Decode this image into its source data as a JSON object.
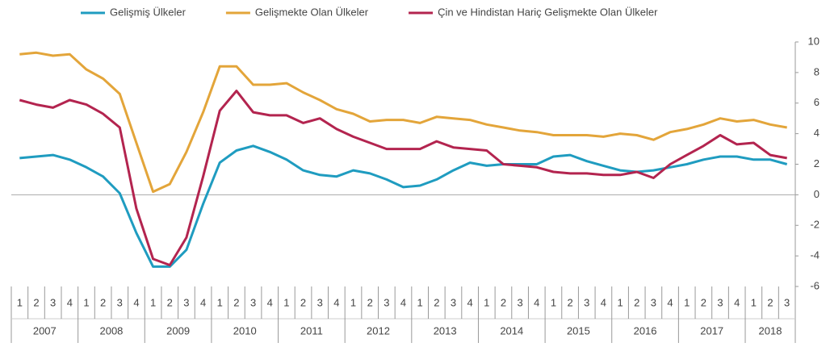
{
  "chart_data": {
    "type": "line",
    "categories": [
      "1",
      "2",
      "3",
      "4",
      "1",
      "2",
      "3",
      "4",
      "1",
      "2",
      "3",
      "4",
      "1",
      "2",
      "3",
      "4",
      "1",
      "2",
      "3",
      "4",
      "1",
      "2",
      "3",
      "4",
      "1",
      "2",
      "3",
      "4",
      "1",
      "2",
      "3",
      "4",
      "1",
      "2",
      "3",
      "4",
      "1",
      "2",
      "3",
      "4",
      "1",
      "2",
      "3",
      "4",
      "1",
      "2",
      "3"
    ],
    "years": [
      "2007",
      "2008",
      "2009",
      "2010",
      "2011",
      "2012",
      "2013",
      "2014",
      "2015",
      "2016",
      "2017",
      "2018"
    ],
    "series": [
      {
        "name": "Gelişmiş Ülkeler",
        "color": "#1f9cc0",
        "values": [
          2.4,
          2.5,
          2.6,
          2.3,
          1.8,
          1.2,
          0.1,
          -2.5,
          -4.7,
          -4.7,
          -3.6,
          -0.6,
          2.1,
          2.9,
          3.2,
          2.8,
          2.3,
          1.6,
          1.3,
          1.2,
          1.6,
          1.4,
          1.0,
          0.5,
          0.6,
          1.0,
          1.6,
          2.1,
          1.9,
          2.0,
          2.0,
          2.0,
          2.5,
          2.6,
          2.2,
          1.9,
          1.6,
          1.5,
          1.6,
          1.8,
          2.0,
          2.3,
          2.5,
          2.5,
          2.3,
          2.3,
          2.0
        ]
      },
      {
        "name": "Gelişmekte Olan Ülkeler",
        "color": "#e3a53a",
        "values": [
          9.2,
          9.3,
          9.1,
          9.2,
          8.2,
          7.6,
          6.6,
          3.4,
          0.2,
          0.7,
          2.8,
          5.4,
          8.4,
          8.4,
          7.2,
          7.2,
          7.3,
          6.7,
          6.2,
          5.6,
          5.3,
          4.8,
          4.9,
          4.9,
          4.7,
          5.1,
          5.0,
          4.9,
          4.6,
          4.4,
          4.2,
          4.1,
          3.9,
          3.9,
          3.9,
          3.8,
          4.0,
          3.9,
          3.6,
          4.1,
          4.3,
          4.6,
          5.0,
          4.8,
          4.9,
          4.6,
          4.4
        ]
      },
      {
        "name": "Çin ve Hindistan Hariç Gelişmekte Olan Ülkeler",
        "color": "#b3244f",
        "values": [
          6.2,
          5.9,
          5.7,
          6.2,
          5.9,
          5.3,
          4.4,
          -0.9,
          -4.2,
          -4.6,
          -2.8,
          1.2,
          5.5,
          6.8,
          5.4,
          5.2,
          5.2,
          4.7,
          5.0,
          4.3,
          3.8,
          3.4,
          3.0,
          3.0,
          3.0,
          3.5,
          3.1,
          3.0,
          2.9,
          2.0,
          1.9,
          1.8,
          1.5,
          1.4,
          1.4,
          1.3,
          1.3,
          1.5,
          1.1,
          2.0,
          2.6,
          3.2,
          3.9,
          3.3,
          3.4,
          2.6,
          2.4
        ]
      }
    ],
    "ylim": [
      -6,
      10
    ],
    "yticks": [
      -6,
      -4,
      -2,
      0,
      2,
      4,
      6,
      8,
      10
    ],
    "legend": "top"
  }
}
